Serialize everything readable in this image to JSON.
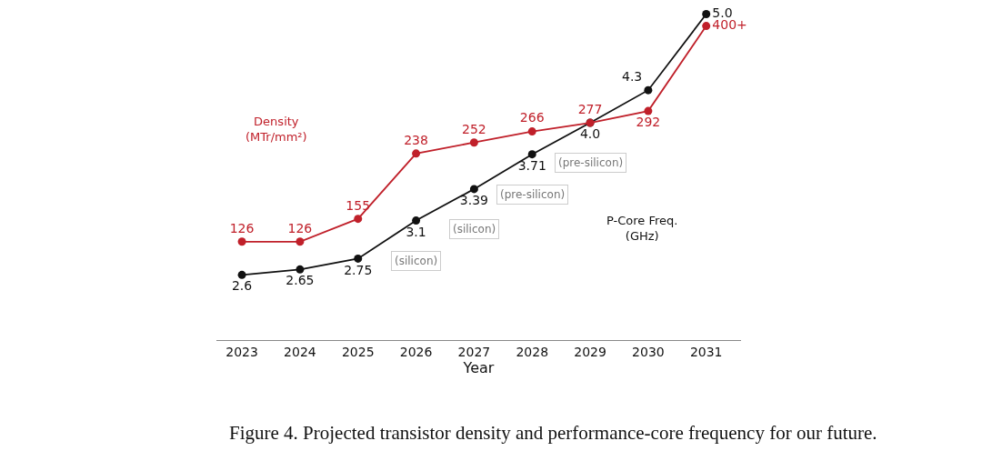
{
  "chart_data": {
    "type": "line",
    "xlabel": "Year",
    "categories": [
      "2023",
      "2024",
      "2025",
      "2026",
      "2027",
      "2028",
      "2029",
      "2030",
      "2031"
    ],
    "series": [
      {
        "name": "Density\n(MTr/mm²)",
        "color": "#c0202a",
        "axis": "y2",
        "values": [
          126,
          126,
          155,
          238,
          252,
          266,
          277,
          292,
          400
        ],
        "value_labels": [
          "126",
          "126",
          "155",
          "238",
          "252",
          "266",
          "277",
          "292",
          "400+"
        ]
      },
      {
        "name": "P-Core Freq.\n(GHz)",
        "color": "#111111",
        "values": [
          2.6,
          2.65,
          2.75,
          3.1,
          3.39,
          3.71,
          4.0,
          4.3,
          5.0
        ],
        "value_labels": [
          "2.6",
          "2.65",
          "2.75",
          "3.1",
          "3.39",
          "3.71",
          "4.0",
          "4.3",
          "5.0"
        ]
      }
    ],
    "ylim": [
      2.0,
      5.13
    ],
    "y2lim": [
      1,
      433
    ],
    "tick_labels": "x",
    "legend": false,
    "marker": "circle",
    "line_style": "solid",
    "annotations": [
      "(silicon)",
      "(silicon)",
      "(pre-silicon)",
      "(pre-silicon)",
      "Figure 4. Projected transistor density and performance-core frequency for our future."
    ]
  }
}
